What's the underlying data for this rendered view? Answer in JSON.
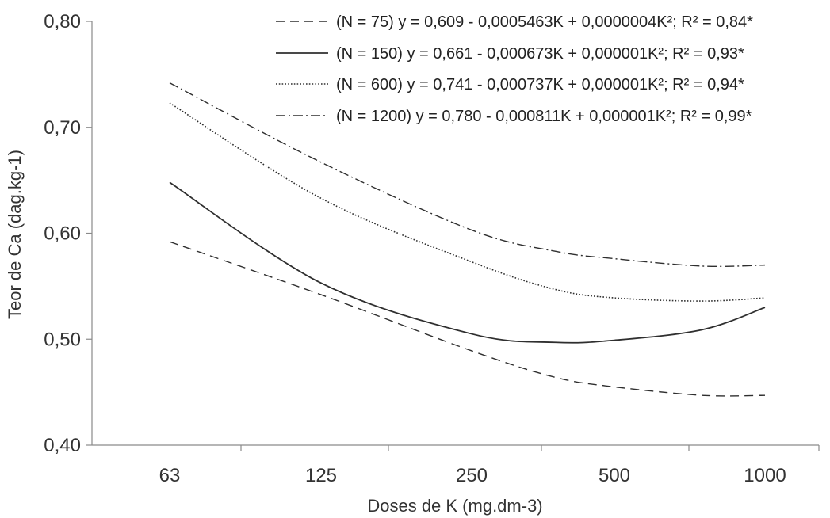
{
  "chart_data": {
    "type": "line",
    "title": "",
    "xlabel": "Doses de K (mg.dm-3)",
    "ylabel": "Teor de Ca (dag.kg-1)",
    "x_scale": "log-categorical",
    "x_ticks": [
      "63",
      "125",
      "250",
      "500",
      "1000"
    ],
    "x": [
      63,
      125,
      250,
      500,
      1000
    ],
    "y_ticks": [
      "0,40",
      "0,50",
      "0,60",
      "0,70",
      "0,80"
    ],
    "ylim": [
      0.4,
      0.8
    ],
    "grid": false,
    "legend_position": "top-right",
    "series": [
      {
        "name": "(N = 75) y = 0,609 - 0,0005463K + 0,0000004K²;  R² = 0,84*",
        "dash": "dashed",
        "x": [
          63,
          125,
          250,
          375,
          500,
          750,
          1000
        ],
        "y": [
          0.592,
          0.542,
          0.489,
          0.464,
          0.455,
          0.447,
          0.447
        ]
      },
      {
        "name": "(N = 150) y = 0,661 - 0,000673K + 0,000001K²;  R² = 0,93*",
        "dash": "solid",
        "x": [
          63,
          125,
          250,
          375,
          500,
          750,
          1000
        ],
        "y": [
          0.648,
          0.553,
          0.505,
          0.497,
          0.499,
          0.509,
          0.53
        ]
      },
      {
        "name": "(N = 600) y = 0,741 - 0,000737K + 0,000001K²;  R² = 0,94*",
        "dash": "dotted",
        "x": [
          63,
          125,
          250,
          375,
          500,
          750,
          1000
        ],
        "y": [
          0.723,
          0.633,
          0.573,
          0.547,
          0.539,
          0.536,
          0.539
        ]
      },
      {
        "name": "(N = 1200) y = 0,780 - 0,000811K + 0,000001K²;  R² = 0,99*",
        "dash": "dashdot",
        "x": [
          63,
          125,
          250,
          375,
          500,
          750,
          1000
        ],
        "y": [
          0.742,
          0.667,
          0.603,
          0.583,
          0.576,
          0.569,
          0.57
        ]
      }
    ]
  }
}
